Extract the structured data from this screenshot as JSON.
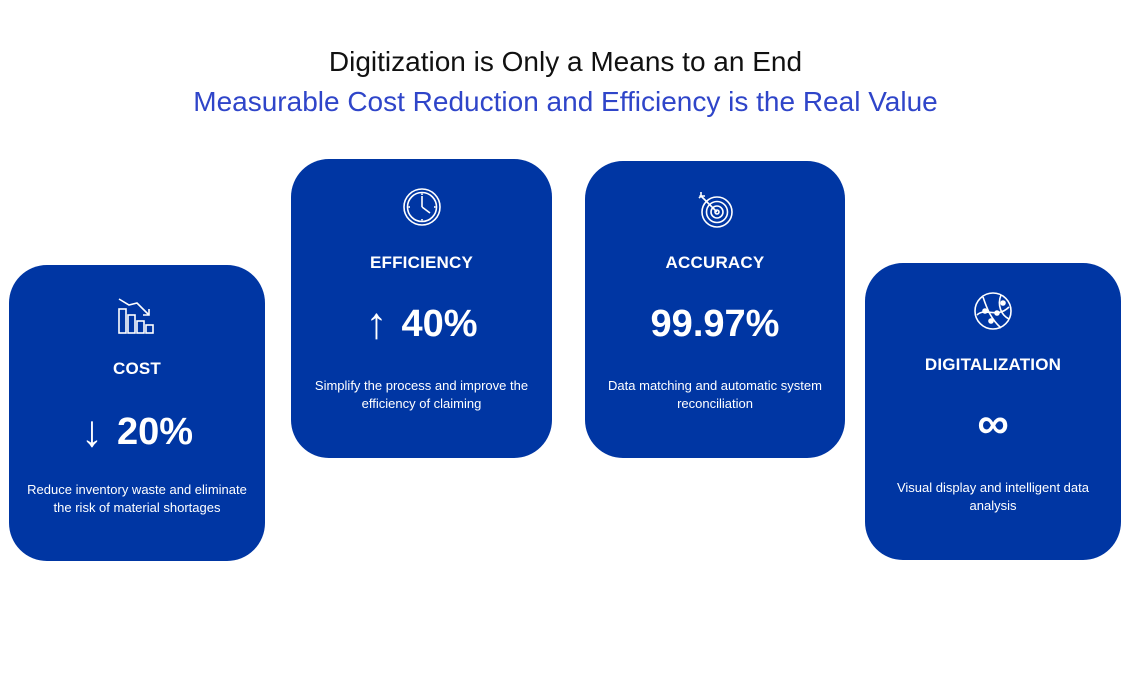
{
  "header": {
    "title": "Digitization is Only a Means to an End",
    "subtitle": "Measurable Cost Reduction and Efficiency is the Real Value"
  },
  "colors": {
    "card_bg": "#0036a3",
    "subtitle": "#2f45c9",
    "title": "#111111"
  },
  "cards": [
    {
      "icon": "chart-decrease-icon",
      "label": "COST",
      "arrow": "↓",
      "value": "20%",
      "description": "Reduce inventory waste and eliminate the risk of material shortages"
    },
    {
      "icon": "clock-icon",
      "label": "EFFICIENCY",
      "arrow": "↑",
      "value": "40%",
      "description": "Simplify the process and improve the efficiency of claiming"
    },
    {
      "icon": "target-icon",
      "label": "ACCURACY",
      "arrow": "",
      "value": "99.97%",
      "description": "Data matching and automatic system reconciliation"
    },
    {
      "icon": "network-globe-icon",
      "label": "DIGITALIZATION",
      "arrow": "",
      "value": "∞",
      "description": "Visual display and intelligent data analysis"
    }
  ]
}
